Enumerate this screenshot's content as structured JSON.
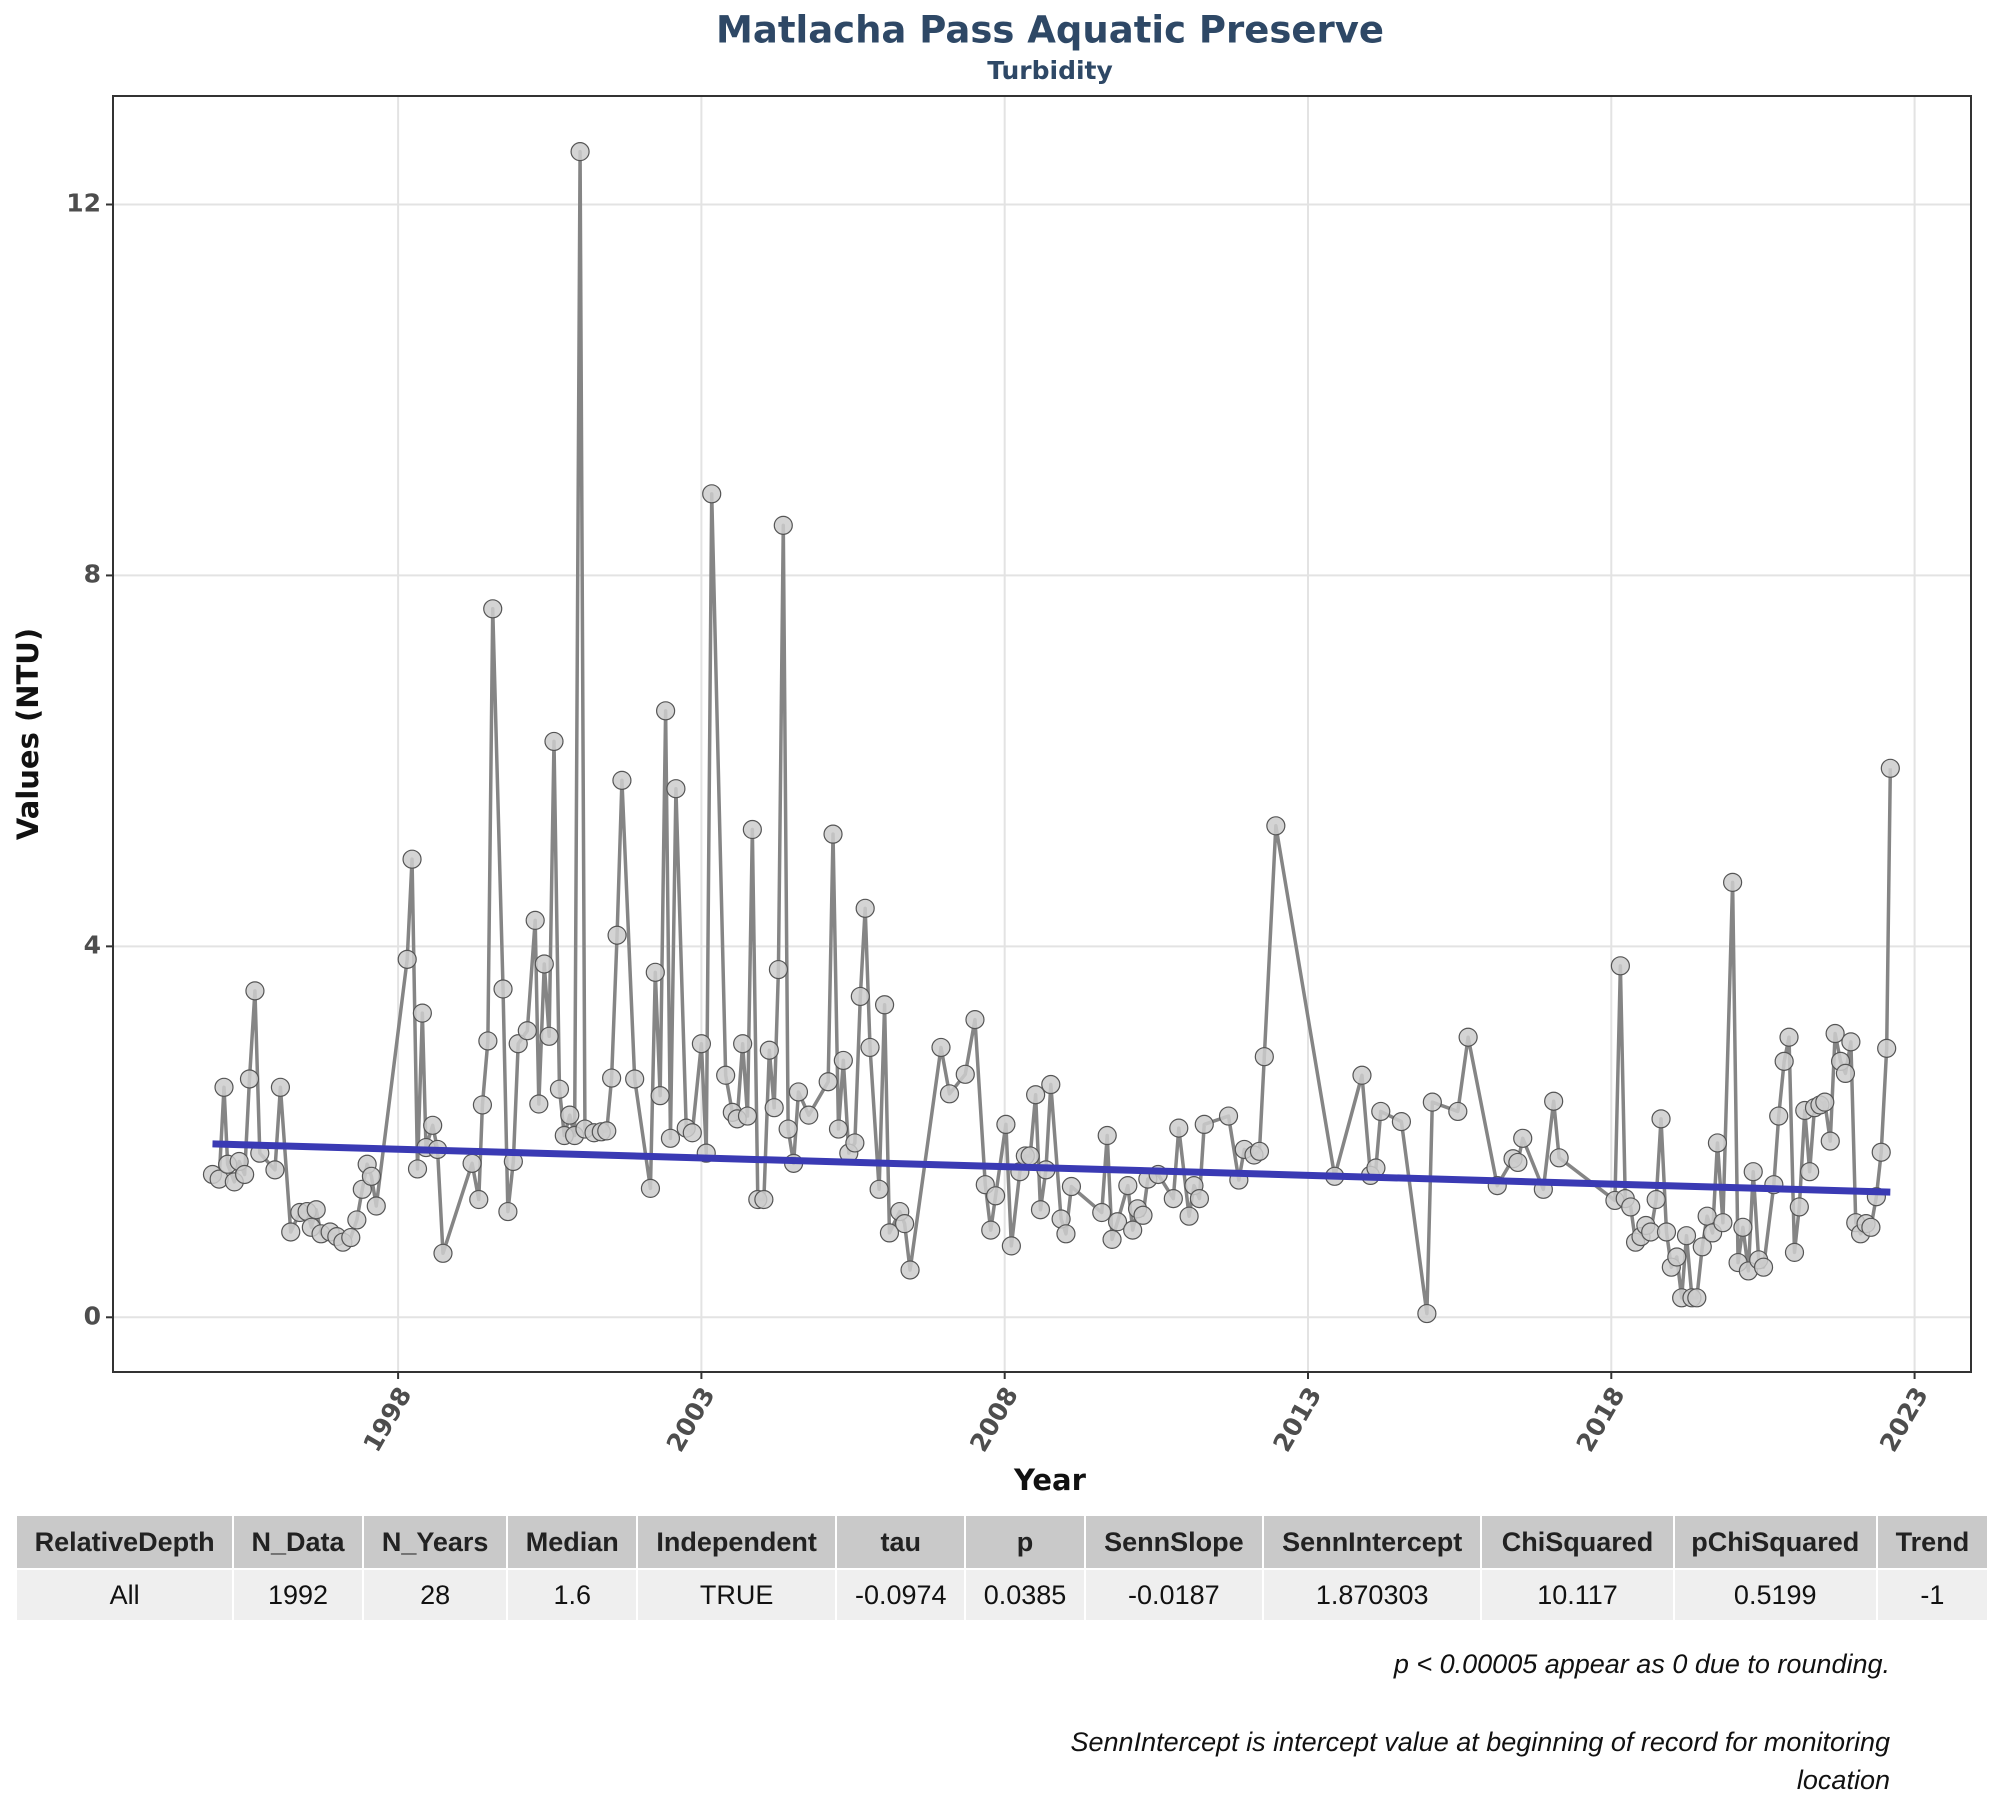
{
  "chart_data": {
    "type": "line",
    "title": "Matlacha Pass Aquatic Preserve",
    "subtitle": "Turbidity",
    "x_label": "Year",
    "y_label": "Values (NTU)",
    "xlim": [
      1993.3,
      2023.93
    ],
    "ylim": [
      -0.59,
      13.17
    ],
    "xticks": [
      1998,
      2003,
      2008,
      2013,
      2018,
      2023
    ],
    "yticks": [
      0,
      4,
      8,
      12
    ],
    "grid": true,
    "series": [
      {
        "color": "#858585",
        "point_color": "#cccccc",
        "x": [
          1994.94,
          1995.05,
          1995.13,
          1995.19,
          1995.3,
          1995.38,
          1995.47,
          1995.55,
          1995.64,
          1995.72,
          1995.97,
          1996.06,
          1996.23,
          1996.38,
          1996.5,
          1996.57,
          1996.65,
          1996.73,
          1996.88,
          1996.99,
          1997.09,
          1997.22,
          1997.32,
          1997.41,
          1997.49,
          1997.56,
          1997.64,
          1998.15,
          1998.23,
          1998.32,
          1998.4,
          1998.46,
          1998.57,
          1998.65,
          1998.74,
          1999.22,
          1999.33,
          1999.39,
          1999.48,
          1999.56,
          1999.73,
          1999.81,
          1999.9,
          1999.98,
          2000.13,
          2000.26,
          2000.32,
          2000.41,
          2000.49,
          2000.57,
          2000.66,
          2000.74,
          2000.83,
          2000.91,
          2001.0,
          2001.08,
          2001.23,
          2001.35,
          2001.44,
          2001.52,
          2001.61,
          2001.69,
          2001.9,
          2002.16,
          2002.24,
          2002.32,
          2002.41,
          2002.49,
          2002.58,
          2002.75,
          2002.85,
          2003.0,
          2003.08,
          2003.17,
          2003.4,
          2003.51,
          2003.59,
          2003.68,
          2003.76,
          2003.84,
          2003.93,
          2004.03,
          2004.12,
          2004.2,
          2004.27,
          2004.35,
          2004.43,
          2004.52,
          2004.6,
          2004.77,
          2005.09,
          2005.17,
          2005.26,
          2005.34,
          2005.43,
          2005.53,
          2005.62,
          2005.7,
          2005.78,
          2005.93,
          2006.02,
          2006.1,
          2006.27,
          2006.35,
          2006.44,
          2006.95,
          2007.09,
          2007.35,
          2007.51,
          2007.68,
          2007.77,
          2007.85,
          2008.02,
          2008.11,
          2008.25,
          2008.34,
          2008.42,
          2008.51,
          2008.59,
          2008.68,
          2008.76,
          2008.93,
          2009.01,
          2009.1,
          2009.6,
          2009.69,
          2009.77,
          2009.86,
          2010.03,
          2010.11,
          2010.19,
          2010.28,
          2010.36,
          2010.53,
          2010.78,
          2010.87,
          2011.04,
          2011.12,
          2011.21,
          2011.29,
          2011.69,
          2011.86,
          2011.95,
          2012.11,
          2012.2,
          2012.28,
          2012.47,
          2013.44,
          2013.89,
          2014.03,
          2014.12,
          2014.2,
          2014.54,
          2014.96,
          2015.05,
          2015.47,
          2015.64,
          2016.12,
          2016.38,
          2016.46,
          2016.54,
          2016.88,
          2017.05,
          2017.14,
          2018.06,
          2018.15,
          2018.23,
          2018.32,
          2018.4,
          2018.49,
          2018.57,
          2018.65,
          2018.74,
          2018.82,
          2018.91,
          2018.99,
          2019.08,
          2019.16,
          2019.24,
          2019.33,
          2019.41,
          2019.5,
          2019.58,
          2019.67,
          2019.75,
          2019.84,
          2020.0,
          2020.09,
          2020.17,
          2020.26,
          2020.34,
          2020.43,
          2020.51,
          2020.68,
          2020.76,
          2020.85,
          2020.93,
          2021.02,
          2021.1,
          2021.19,
          2021.27,
          2021.35,
          2021.44,
          2021.52,
          2021.61,
          2021.69,
          2021.78,
          2021.86,
          2021.95,
          2022.03,
          2022.11,
          2022.2,
          2022.28,
          2022.37,
          2022.45,
          2022.54,
          2022.6
        ],
        "values": [
          1.54,
          1.49,
          2.48,
          1.65,
          1.46,
          1.68,
          1.54,
          2.57,
          3.52,
          1.77,
          1.59,
          2.48,
          0.92,
          1.13,
          1.14,
          0.97,
          1.16,
          0.9,
          0.92,
          0.87,
          0.81,
          0.86,
          1.05,
          1.38,
          1.65,
          1.52,
          1.2,
          3.86,
          4.94,
          1.6,
          3.28,
          1.83,
          2.07,
          1.81,
          0.69,
          1.66,
          1.27,
          2.29,
          2.98,
          7.64,
          3.54,
          1.14,
          1.68,
          2.95,
          3.09,
          4.28,
          2.3,
          3.81,
          3.03,
          6.21,
          2.46,
          1.96,
          2.18,
          1.96,
          12.57,
          2.03,
          1.99,
          2.0,
          2.01,
          2.58,
          4.12,
          5.79,
          2.57,
          1.39,
          3.72,
          2.39,
          6.54,
          1.93,
          5.7,
          2.04,
          1.99,
          2.95,
          1.77,
          8.88,
          2.61,
          2.21,
          2.14,
          2.95,
          2.17,
          5.26,
          1.27,
          1.27,
          2.88,
          2.26,
          3.75,
          8.54,
          2.03,
          1.66,
          2.43,
          2.18,
          2.54,
          5.21,
          2.03,
          2.77,
          1.77,
          1.88,
          3.46,
          4.41,
          2.91,
          1.38,
          3.37,
          0.91,
          1.14,
          1.01,
          0.51,
          2.91,
          2.41,
          2.62,
          3.21,
          1.43,
          0.94,
          1.31,
          2.08,
          0.77,
          1.57,
          1.74,
          1.74,
          2.4,
          1.16,
          1.59,
          2.51,
          1.06,
          0.9,
          1.41,
          1.13,
          1.96,
          0.84,
          1.03,
          1.42,
          0.94,
          1.17,
          1.1,
          1.49,
          1.54,
          1.28,
          2.04,
          1.09,
          1.42,
          1.28,
          2.08,
          2.17,
          1.48,
          1.81,
          1.75,
          1.79,
          2.81,
          5.3,
          1.52,
          2.61,
          1.53,
          1.61,
          2.22,
          2.11,
          0.04,
          2.32,
          2.22,
          3.02,
          1.42,
          1.71,
          1.67,
          1.93,
          1.38,
          2.33,
          1.72,
          1.26,
          3.79,
          1.28,
          1.19,
          0.81,
          0.87,
          0.99,
          0.92,
          1.27,
          2.14,
          0.92,
          0.54,
          0.65,
          0.21,
          0.88,
          0.21,
          0.21,
          0.76,
          1.09,
          0.91,
          1.88,
          1.02,
          4.69,
          0.59,
          0.97,
          0.5,
          1.57,
          0.62,
          0.54,
          1.43,
          2.17,
          2.76,
          3.02,
          0.7,
          1.19,
          2.23,
          1.57,
          2.26,
          2.29,
          2.32,
          1.9,
          3.06,
          2.76,
          2.63,
          2.97,
          1.02,
          0.9,
          1.01,
          0.97,
          1.3,
          1.78,
          2.9,
          5.92
        ]
      },
      {
        "color": "#3a3ab4",
        "x": [
          1994.94,
          2022.6
        ],
        "values": [
          1.87,
          1.35
        ]
      }
    ]
  },
  "table": {
    "columns": [
      "RelativeDepth",
      "N_Data",
      "N_Years",
      "Median",
      "Independent",
      "tau",
      "p",
      "SennSlope",
      "SennIntercept",
      "ChiSquared",
      "pChiSquared",
      "Trend"
    ],
    "rows": [
      [
        "All",
        1992,
        28,
        1.6,
        "TRUE",
        -0.0974,
        0.0385,
        -0.0187,
        1.870303,
        10.117,
        0.5199,
        -1
      ]
    ]
  },
  "notes": [
    "p < 0.00005 appear as 0 due to rounding.",
    "SennIntercept is intercept value at beginning of record for monitoring location"
  ]
}
